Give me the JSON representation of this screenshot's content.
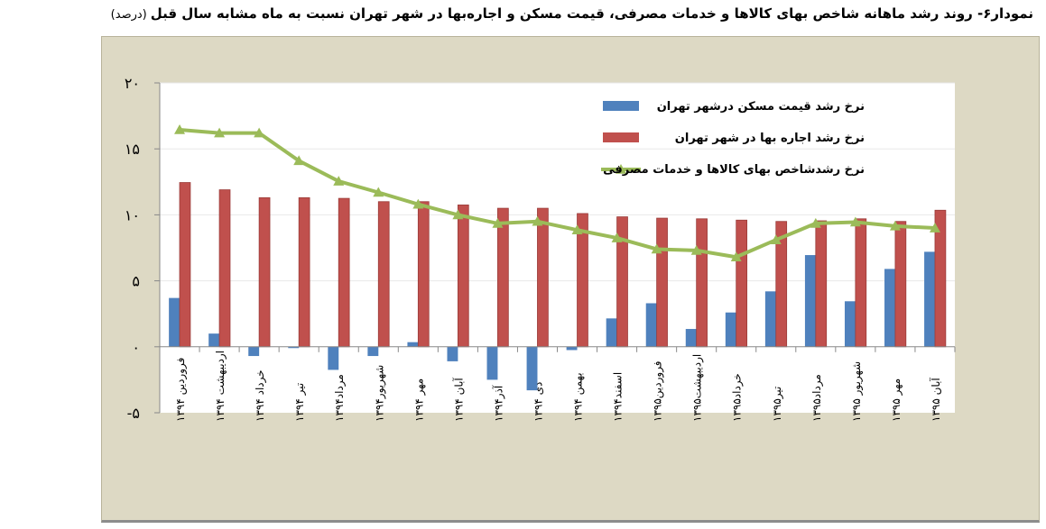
{
  "title": "نمودار۶- روند رشد ماهانه شاخص بهای کالاها و خدمات مصرفی، قیمت مسکن و اجاره‌بها در شهر تهران نسبت به ماه مشابه سال قبل",
  "unit": "(درصد)",
  "chart_data": {
    "type": "bar",
    "title": "نمودار۶- روند رشد ماهانه شاخص بهای کالاها و خدمات مصرفی، قیمت مسکن و اجاره‌بها در شهر تهران نسبت به ماه مشابه سال قبل (درصد)",
    "ylim": [
      -5,
      20
    ],
    "yticks": [
      20,
      15,
      10,
      5,
      0,
      -5
    ],
    "ytick_labels": [
      "۲۰",
      "۱۵",
      "۱۰",
      "۵",
      "۰",
      "-۵"
    ],
    "grid": true,
    "legend_placement": "top-right",
    "categories": [
      "فروردین ۱۳۹۴",
      "اردیبهشت ۱۳۹۴",
      "خرداد ۱۳۹۴",
      "تیر ۱۳۹۴",
      "مرداد۱۳۹۴",
      "شهریور۱۳۹۴",
      "مهر ۱۳۹۴",
      "آبان ۱۳۹۴",
      "آذر۱۳۹۴",
      "دی ۱۳۹۴",
      "بهمن ۱۳۹۴",
      "اسفند۱۳۹۴",
      "فروردین۱۳۹۵",
      "اردیبهشت۱۳۹۵",
      "خرداد۱۳۹۵",
      "تیر۱۳۹۵",
      "مرداد۱۳۹۵",
      "شهریور ۱۳۹۵",
      "مهر ۱۳۹۵",
      "آبان ۱۳۹۵"
    ],
    "series": [
      {
        "name": "نرخ رشد قیمت مسکن  درشهر تهران",
        "kind": "bar",
        "color": "#4f81bd",
        "values": [
          3.7,
          1.0,
          -0.7,
          -0.1,
          -1.75,
          -0.7,
          0.35,
          -1.1,
          -2.5,
          -3.3,
          -0.25,
          2.15,
          3.3,
          1.35,
          2.6,
          4.2,
          6.95,
          3.45,
          5.9,
          7.2
        ]
      },
      {
        "name": "نرخ رشد اجاره بها در شهر تهران",
        "kind": "bar",
        "color": "#c0504d",
        "values": [
          12.45,
          11.9,
          11.3,
          11.3,
          11.25,
          11.0,
          11.0,
          10.75,
          10.5,
          10.5,
          10.1,
          9.85,
          9.75,
          9.7,
          9.6,
          9.5,
          9.55,
          9.7,
          9.5,
          10.35
        ]
      },
      {
        "name": "نرخ رشدشاخص بهای کالاها و خدمات مصرفی",
        "kind": "line",
        "marker": "triangle",
        "color": "#9bbb59",
        "values": [
          16.45,
          16.2,
          16.2,
          14.1,
          12.55,
          11.7,
          10.8,
          10.0,
          9.35,
          9.5,
          8.85,
          8.25,
          7.4,
          7.3,
          6.8,
          8.1,
          9.35,
          9.45,
          9.15,
          9.0
        ]
      }
    ]
  }
}
